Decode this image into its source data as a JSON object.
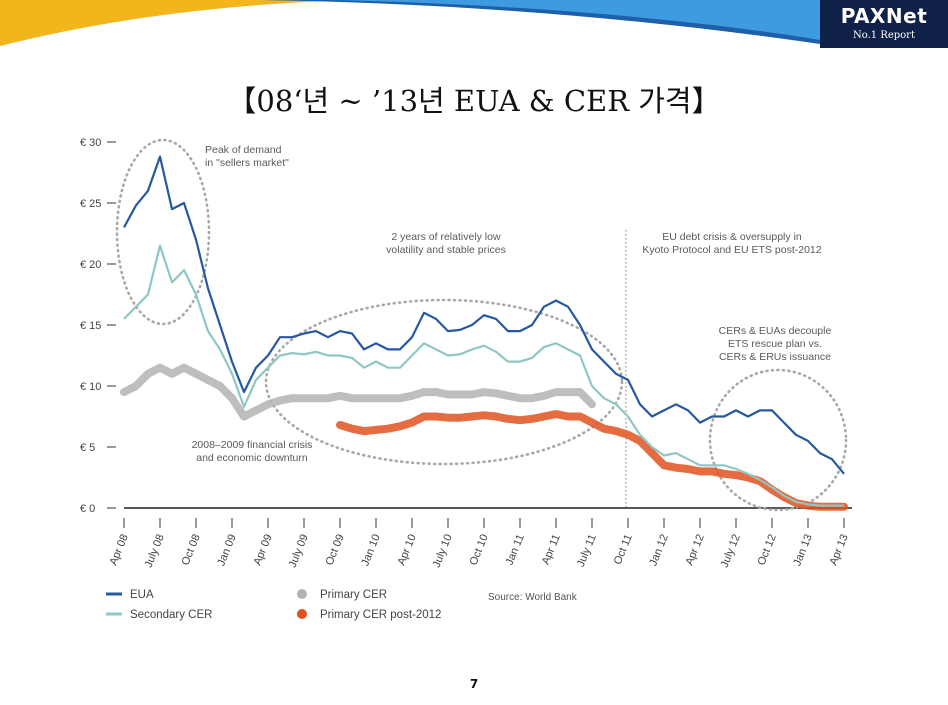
{
  "header": {
    "logo_text": "PAXNet",
    "logo_sub": "No.1 Report",
    "colors": {
      "banner_blue": "#1d5fa8",
      "banner_light": "#3f9be0",
      "banner_yellow": "#f2b61c",
      "logo_bg": "#0f2149",
      "logo_accent": "#e4a20b"
    }
  },
  "title": "【08‘년 ~ ’13년 EUA & CER 가격】",
  "page_number": "7",
  "chart_data": {
    "type": "line",
    "yunit": "€",
    "ylim": [
      0,
      30
    ],
    "yticks": [
      "€ 30",
      "€ 25",
      "€ 20",
      "€ 15",
      "€ 10",
      "€ 5",
      "€ 0"
    ],
    "ytick_values": [
      30,
      25,
      20,
      15,
      10,
      5,
      0
    ],
    "xlim": [
      "2008-04",
      "2013-04"
    ],
    "xticks": [
      "Apr 08",
      "July 08",
      "Oct 08",
      "Jan 09",
      "Apr 09",
      "July 09",
      "Oct 09",
      "Jan 10",
      "Apr 10",
      "July 10",
      "Oct 10",
      "Jan 11",
      "Apr 11",
      "July 11",
      "Oct 11",
      "Jan 12",
      "Apr 12",
      "July 12",
      "Oct 12",
      "Jan 13",
      "Apr 13"
    ],
    "source": "Source: World Bank",
    "grid": false,
    "legend_position": "bottom-left",
    "series": [
      {
        "name": "EUA",
        "color": "#2757a3",
        "style": "line",
        "points": [
          [
            "2008-04",
            23.0
          ],
          [
            "2008-05",
            24.8
          ],
          [
            "2008-06",
            26.0
          ],
          [
            "2008-07",
            28.8
          ],
          [
            "2008-08",
            24.5
          ],
          [
            "2008-09",
            25.0
          ],
          [
            "2008-10",
            22.0
          ],
          [
            "2008-11",
            18.0
          ],
          [
            "2008-12",
            15.0
          ],
          [
            "2009-01",
            12.0
          ],
          [
            "2009-02",
            9.5
          ],
          [
            "2009-03",
            11.5
          ],
          [
            "2009-04",
            12.5
          ],
          [
            "2009-05",
            14.0
          ],
          [
            "2009-06",
            14.0
          ],
          [
            "2009-07",
            14.3
          ],
          [
            "2009-08",
            14.5
          ],
          [
            "2009-09",
            14.0
          ],
          [
            "2009-10",
            14.5
          ],
          [
            "2009-11",
            14.3
          ],
          [
            "2009-12",
            13.0
          ],
          [
            "2010-01",
            13.5
          ],
          [
            "2010-02",
            13.0
          ],
          [
            "2010-03",
            13.0
          ],
          [
            "2010-04",
            14.0
          ],
          [
            "2010-05",
            16.0
          ],
          [
            "2010-06",
            15.5
          ],
          [
            "2010-07",
            14.5
          ],
          [
            "2010-08",
            14.6
          ],
          [
            "2010-09",
            15.0
          ],
          [
            "2010-10",
            15.8
          ],
          [
            "2010-11",
            15.5
          ],
          [
            "2010-12",
            14.5
          ],
          [
            "2011-01",
            14.5
          ],
          [
            "2011-02",
            15.0
          ],
          [
            "2011-03",
            16.5
          ],
          [
            "2011-04",
            17.0
          ],
          [
            "2011-05",
            16.5
          ],
          [
            "2011-06",
            15.0
          ],
          [
            "2011-07",
            13.0
          ],
          [
            "2011-08",
            12.0
          ],
          [
            "2011-09",
            11.0
          ],
          [
            "2011-10",
            10.5
          ],
          [
            "2011-11",
            8.5
          ],
          [
            "2011-12",
            7.5
          ],
          [
            "2012-01",
            8.0
          ],
          [
            "2012-02",
            8.5
          ],
          [
            "2012-03",
            8.0
          ],
          [
            "2012-04",
            7.0
          ],
          [
            "2012-05",
            7.5
          ],
          [
            "2012-06",
            7.5
          ],
          [
            "2012-07",
            8.0
          ],
          [
            "2012-08",
            7.5
          ],
          [
            "2012-09",
            8.0
          ],
          [
            "2012-10",
            8.0
          ],
          [
            "2012-11",
            7.0
          ],
          [
            "2012-12",
            6.0
          ],
          [
            "2013-01",
            5.5
          ],
          [
            "2013-02",
            4.5
          ],
          [
            "2013-03",
            4.0
          ],
          [
            "2013-04",
            2.8
          ]
        ]
      },
      {
        "name": "Secondary CER",
        "color": "#8fc6c6",
        "style": "line",
        "points": [
          [
            "2008-04",
            15.5
          ],
          [
            "2008-05",
            16.5
          ],
          [
            "2008-06",
            17.5
          ],
          [
            "2008-07",
            21.5
          ],
          [
            "2008-08",
            18.5
          ],
          [
            "2008-09",
            19.5
          ],
          [
            "2008-10",
            17.5
          ],
          [
            "2008-11",
            14.5
          ],
          [
            "2008-12",
            13.0
          ],
          [
            "2009-01",
            11.0
          ],
          [
            "2009-02",
            8.3
          ],
          [
            "2009-03",
            10.5
          ],
          [
            "2009-04",
            11.5
          ],
          [
            "2009-05",
            12.5
          ],
          [
            "2009-06",
            12.7
          ],
          [
            "2009-07",
            12.6
          ],
          [
            "2009-08",
            12.8
          ],
          [
            "2009-09",
            12.5
          ],
          [
            "2009-10",
            12.5
          ],
          [
            "2009-11",
            12.3
          ],
          [
            "2009-12",
            11.5
          ],
          [
            "2010-01",
            12.0
          ],
          [
            "2010-02",
            11.5
          ],
          [
            "2010-03",
            11.5
          ],
          [
            "2010-04",
            12.5
          ],
          [
            "2010-05",
            13.5
          ],
          [
            "2010-06",
            13.0
          ],
          [
            "2010-07",
            12.5
          ],
          [
            "2010-08",
            12.6
          ],
          [
            "2010-09",
            13.0
          ],
          [
            "2010-10",
            13.3
          ],
          [
            "2010-11",
            12.8
          ],
          [
            "2010-12",
            12.0
          ],
          [
            "2011-01",
            12.0
          ],
          [
            "2011-02",
            12.3
          ],
          [
            "2011-03",
            13.2
          ],
          [
            "2011-04",
            13.5
          ],
          [
            "2011-05",
            13.0
          ],
          [
            "2011-06",
            12.5
          ],
          [
            "2011-07",
            10.0
          ],
          [
            "2011-08",
            9.0
          ],
          [
            "2011-09",
            8.5
          ],
          [
            "2011-10",
            7.5
          ],
          [
            "2011-11",
            6.0
          ],
          [
            "2011-12",
            5.0
          ],
          [
            "2012-01",
            4.3
          ],
          [
            "2012-02",
            4.5
          ],
          [
            "2012-03",
            4.0
          ],
          [
            "2012-04",
            3.5
          ],
          [
            "2012-05",
            3.5
          ],
          [
            "2012-06",
            3.5
          ],
          [
            "2012-07",
            3.2
          ],
          [
            "2012-08",
            2.8
          ],
          [
            "2012-09",
            2.3
          ],
          [
            "2012-10",
            1.7
          ],
          [
            "2012-11",
            1.0
          ],
          [
            "2012-12",
            0.5
          ],
          [
            "2013-01",
            0.3
          ],
          [
            "2013-02",
            0.2
          ],
          [
            "2013-03",
            0.2
          ],
          [
            "2013-04",
            0.2
          ]
        ]
      },
      {
        "name": "Primary CER",
        "color": "#b3b3b3",
        "style": "band",
        "points": [
          [
            "2008-04",
            9.5
          ],
          [
            "2008-05",
            10.0
          ],
          [
            "2008-06",
            11.0
          ],
          [
            "2008-07",
            11.5
          ],
          [
            "2008-08",
            11.0
          ],
          [
            "2008-09",
            11.5
          ],
          [
            "2008-10",
            11.0
          ],
          [
            "2008-11",
            10.5
          ],
          [
            "2008-12",
            10.0
          ],
          [
            "2009-01",
            9.0
          ],
          [
            "2009-02",
            7.5
          ],
          [
            "2009-03",
            8.0
          ],
          [
            "2009-04",
            8.5
          ],
          [
            "2009-05",
            8.8
          ],
          [
            "2009-06",
            9.0
          ],
          [
            "2009-07",
            9.0
          ],
          [
            "2009-08",
            9.0
          ],
          [
            "2009-09",
            9.0
          ],
          [
            "2009-10",
            9.2
          ],
          [
            "2009-11",
            9.0
          ],
          [
            "2009-12",
            9.0
          ],
          [
            "2010-01",
            9.0
          ],
          [
            "2010-02",
            9.0
          ],
          [
            "2010-03",
            9.0
          ],
          [
            "2010-04",
            9.2
          ],
          [
            "2010-05",
            9.5
          ],
          [
            "2010-06",
            9.5
          ],
          [
            "2010-07",
            9.3
          ],
          [
            "2010-08",
            9.3
          ],
          [
            "2010-09",
            9.3
          ],
          [
            "2010-10",
            9.5
          ],
          [
            "2010-11",
            9.4
          ],
          [
            "2010-12",
            9.2
          ],
          [
            "2011-01",
            9.0
          ],
          [
            "2011-02",
            9.0
          ],
          [
            "2011-03",
            9.2
          ],
          [
            "2011-04",
            9.5
          ],
          [
            "2011-05",
            9.5
          ],
          [
            "2011-06",
            9.5
          ],
          [
            "2011-07",
            8.5
          ]
        ]
      },
      {
        "name": "Primary CER post-2012",
        "color": "#e0521e",
        "style": "band",
        "points": [
          [
            "2009-10",
            6.8
          ],
          [
            "2009-11",
            6.5
          ],
          [
            "2009-12",
            6.3
          ],
          [
            "2010-01",
            6.4
          ],
          [
            "2010-02",
            6.5
          ],
          [
            "2010-03",
            6.7
          ],
          [
            "2010-04",
            7.0
          ],
          [
            "2010-05",
            7.5
          ],
          [
            "2010-06",
            7.5
          ],
          [
            "2010-07",
            7.4
          ],
          [
            "2010-08",
            7.4
          ],
          [
            "2010-09",
            7.5
          ],
          [
            "2010-10",
            7.6
          ],
          [
            "2010-11",
            7.5
          ],
          [
            "2010-12",
            7.3
          ],
          [
            "2011-01",
            7.2
          ],
          [
            "2011-02",
            7.3
          ],
          [
            "2011-03",
            7.5
          ],
          [
            "2011-04",
            7.7
          ],
          [
            "2011-05",
            7.5
          ],
          [
            "2011-06",
            7.5
          ],
          [
            "2011-07",
            7.0
          ],
          [
            "2011-08",
            6.5
          ],
          [
            "2011-09",
            6.3
          ],
          [
            "2011-10",
            6.0
          ],
          [
            "2011-11",
            5.5
          ],
          [
            "2011-12",
            4.5
          ],
          [
            "2012-01",
            3.5
          ],
          [
            "2012-02",
            3.3
          ],
          [
            "2012-03",
            3.2
          ],
          [
            "2012-04",
            3.0
          ],
          [
            "2012-05",
            3.0
          ],
          [
            "2012-06",
            2.8
          ],
          [
            "2012-07",
            2.7
          ],
          [
            "2012-08",
            2.5
          ],
          [
            "2012-09",
            2.2
          ],
          [
            "2012-10",
            1.5
          ],
          [
            "2012-11",
            0.9
          ],
          [
            "2012-12",
            0.4
          ],
          [
            "2013-01",
            0.2
          ],
          [
            "2013-02",
            0.1
          ],
          [
            "2013-03",
            0.1
          ],
          [
            "2013-04",
            0.1
          ]
        ]
      }
    ],
    "annotations": [
      {
        "lines": [
          "Peak of demand",
          "in \"sellers market\""
        ]
      },
      {
        "lines": [
          "2 years of relatively low",
          "volatility and stable prices"
        ]
      },
      {
        "lines": [
          "EU debt crisis & oversupply in",
          "Kyoto Protocol and EU ETS post-2012"
        ]
      },
      {
        "lines": [
          "CERs & EUAs decouple",
          "ETS rescue plan vs.",
          "CERs & ERUs issuance"
        ]
      },
      {
        "lines": [
          "2008–2009 financial crisis",
          "and economic downturn"
        ]
      }
    ]
  }
}
